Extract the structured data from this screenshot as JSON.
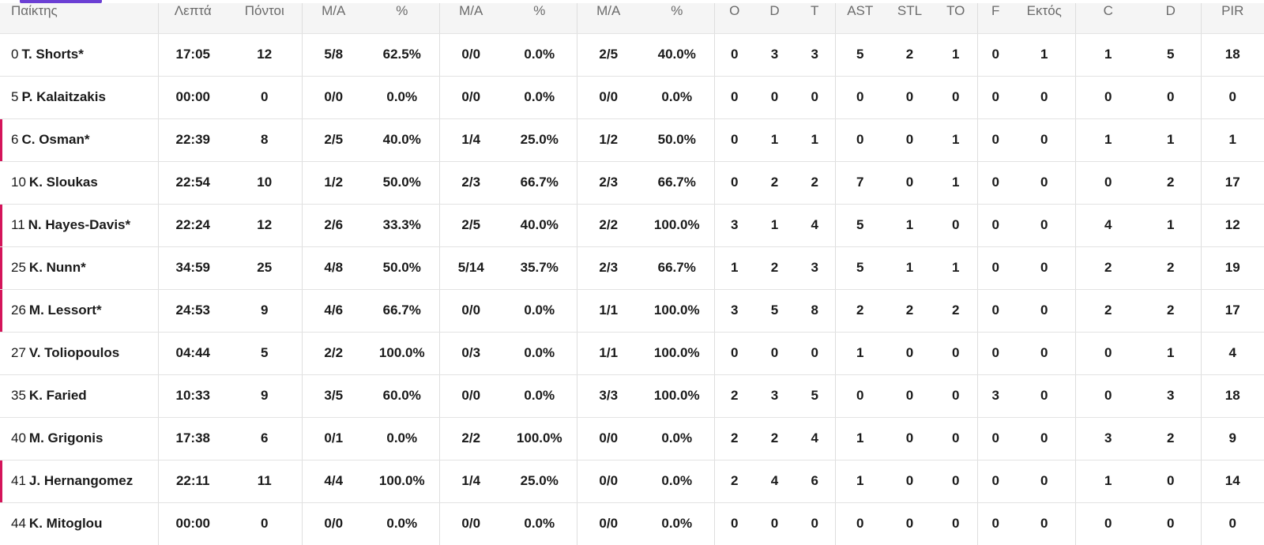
{
  "header": {
    "player": "Παίκτης",
    "min": "Λεπτά",
    "pts": "Πόντοι",
    "fg2_ma": "Μ/Α",
    "fg2_pct": "%",
    "fg3_ma": "Μ/Α",
    "fg3_pct": "%",
    "ft_ma": "Μ/Α",
    "ft_pct": "%",
    "o": "O",
    "d": "D",
    "t": "T",
    "ast": "AST",
    "stl": "STL",
    "to": "TO",
    "f": "F",
    "ektos": "Εκτός",
    "c": "C",
    "d2": "D",
    "pir": "PIR"
  },
  "accent_color": "#d4145a",
  "tab_color": "#6b3fd4",
  "rows": [
    {
      "num": "0",
      "name": "T. Shorts*",
      "starter": false,
      "min": "17:05",
      "pts": "12",
      "fg2_ma": "5/8",
      "fg2_pct": "62.5%",
      "fg3_ma": "0/0",
      "fg3_pct": "0.0%",
      "ft_ma": "2/5",
      "ft_pct": "40.0%",
      "o": "0",
      "d": "3",
      "t": "3",
      "ast": "5",
      "stl": "2",
      "to": "1",
      "f": "0",
      "ektos": "1",
      "c": "1",
      "d2": "5",
      "pir": "18"
    },
    {
      "num": "5",
      "name": "P. Kalaitzakis",
      "starter": false,
      "min": "00:00",
      "pts": "0",
      "fg2_ma": "0/0",
      "fg2_pct": "0.0%",
      "fg3_ma": "0/0",
      "fg3_pct": "0.0%",
      "ft_ma": "0/0",
      "ft_pct": "0.0%",
      "o": "0",
      "d": "0",
      "t": "0",
      "ast": "0",
      "stl": "0",
      "to": "0",
      "f": "0",
      "ektos": "0",
      "c": "0",
      "d2": "0",
      "pir": "0"
    },
    {
      "num": "6",
      "name": "C. Osman*",
      "starter": true,
      "min": "22:39",
      "pts": "8",
      "fg2_ma": "2/5",
      "fg2_pct": "40.0%",
      "fg3_ma": "1/4",
      "fg3_pct": "25.0%",
      "ft_ma": "1/2",
      "ft_pct": "50.0%",
      "o": "0",
      "d": "1",
      "t": "1",
      "ast": "0",
      "stl": "0",
      "to": "1",
      "f": "0",
      "ektos": "0",
      "c": "1",
      "d2": "1",
      "pir": "1"
    },
    {
      "num": "10",
      "name": "K. Sloukas",
      "starter": false,
      "min": "22:54",
      "pts": "10",
      "fg2_ma": "1/2",
      "fg2_pct": "50.0%",
      "fg3_ma": "2/3",
      "fg3_pct": "66.7%",
      "ft_ma": "2/3",
      "ft_pct": "66.7%",
      "o": "0",
      "d": "2",
      "t": "2",
      "ast": "7",
      "stl": "0",
      "to": "1",
      "f": "0",
      "ektos": "0",
      "c": "0",
      "d2": "2",
      "pir": "17"
    },
    {
      "num": "11",
      "name": "N. Hayes-Davis*",
      "starter": true,
      "min": "22:24",
      "pts": "12",
      "fg2_ma": "2/6",
      "fg2_pct": "33.3%",
      "fg3_ma": "2/5",
      "fg3_pct": "40.0%",
      "ft_ma": "2/2",
      "ft_pct": "100.0%",
      "o": "3",
      "d": "1",
      "t": "4",
      "ast": "5",
      "stl": "1",
      "to": "0",
      "f": "0",
      "ektos": "0",
      "c": "4",
      "d2": "1",
      "pir": "12"
    },
    {
      "num": "25",
      "name": "K. Nunn*",
      "starter": true,
      "min": "34:59",
      "pts": "25",
      "fg2_ma": "4/8",
      "fg2_pct": "50.0%",
      "fg3_ma": "5/14",
      "fg3_pct": "35.7%",
      "ft_ma": "2/3",
      "ft_pct": "66.7%",
      "o": "1",
      "d": "2",
      "t": "3",
      "ast": "5",
      "stl": "1",
      "to": "1",
      "f": "0",
      "ektos": "0",
      "c": "2",
      "d2": "2",
      "pir": "19"
    },
    {
      "num": "26",
      "name": "M. Lessort*",
      "starter": true,
      "min": "24:53",
      "pts": "9",
      "fg2_ma": "4/6",
      "fg2_pct": "66.7%",
      "fg3_ma": "0/0",
      "fg3_pct": "0.0%",
      "ft_ma": "1/1",
      "ft_pct": "100.0%",
      "o": "3",
      "d": "5",
      "t": "8",
      "ast": "2",
      "stl": "2",
      "to": "2",
      "f": "0",
      "ektos": "0",
      "c": "2",
      "d2": "2",
      "pir": "17"
    },
    {
      "num": "27",
      "name": "V. Toliopoulos",
      "starter": false,
      "min": "04:44",
      "pts": "5",
      "fg2_ma": "2/2",
      "fg2_pct": "100.0%",
      "fg3_ma": "0/3",
      "fg3_pct": "0.0%",
      "ft_ma": "1/1",
      "ft_pct": "100.0%",
      "o": "0",
      "d": "0",
      "t": "0",
      "ast": "1",
      "stl": "0",
      "to": "0",
      "f": "0",
      "ektos": "0",
      "c": "0",
      "d2": "1",
      "pir": "4"
    },
    {
      "num": "35",
      "name": "K. Faried",
      "starter": false,
      "min": "10:33",
      "pts": "9",
      "fg2_ma": "3/5",
      "fg2_pct": "60.0%",
      "fg3_ma": "0/0",
      "fg3_pct": "0.0%",
      "ft_ma": "3/3",
      "ft_pct": "100.0%",
      "o": "2",
      "d": "3",
      "t": "5",
      "ast": "0",
      "stl": "0",
      "to": "0",
      "f": "3",
      "ektos": "0",
      "c": "0",
      "d2": "3",
      "pir": "18"
    },
    {
      "num": "40",
      "name": "M. Grigonis",
      "starter": false,
      "min": "17:38",
      "pts": "6",
      "fg2_ma": "0/1",
      "fg2_pct": "0.0%",
      "fg3_ma": "2/2",
      "fg3_pct": "100.0%",
      "ft_ma": "0/0",
      "ft_pct": "0.0%",
      "o": "2",
      "d": "2",
      "t": "4",
      "ast": "1",
      "stl": "0",
      "to": "0",
      "f": "0",
      "ektos": "0",
      "c": "3",
      "d2": "2",
      "pir": "9"
    },
    {
      "num": "41",
      "name": "J. Hernangomez",
      "starter": true,
      "min": "22:11",
      "pts": "11",
      "fg2_ma": "4/4",
      "fg2_pct": "100.0%",
      "fg3_ma": "1/4",
      "fg3_pct": "25.0%",
      "ft_ma": "0/0",
      "ft_pct": "0.0%",
      "o": "2",
      "d": "4",
      "t": "6",
      "ast": "1",
      "stl": "0",
      "to": "0",
      "f": "0",
      "ektos": "0",
      "c": "1",
      "d2": "0",
      "pir": "14"
    },
    {
      "num": "44",
      "name": "K. Mitoglou",
      "starter": false,
      "min": "00:00",
      "pts": "0",
      "fg2_ma": "0/0",
      "fg2_pct": "0.0%",
      "fg3_ma": "0/0",
      "fg3_pct": "0.0%",
      "ft_ma": "0/0",
      "ft_pct": "0.0%",
      "o": "0",
      "d": "0",
      "t": "0",
      "ast": "0",
      "stl": "0",
      "to": "0",
      "f": "0",
      "ektos": "0",
      "c": "0",
      "d2": "0",
      "pir": "0"
    }
  ]
}
